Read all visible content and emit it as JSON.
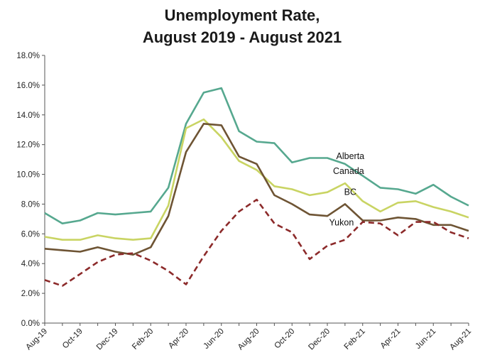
{
  "chart_data": {
    "type": "line",
    "title_lines": [
      "Unemployment Rate,",
      "August 2019 - August 2021"
    ],
    "xlabel": "",
    "ylabel": "",
    "x": [
      "Aug-19",
      "Sep-19",
      "Oct-19",
      "Nov-19",
      "Dec-19",
      "Jan-20",
      "Feb-20",
      "Mar-20",
      "Apr-20",
      "May-20",
      "Jun-20",
      "Jul-20",
      "Aug-20",
      "Sep-20",
      "Oct-20",
      "Nov-20",
      "Dec-20",
      "Jan-21",
      "Feb-21",
      "Mar-21",
      "Apr-21",
      "May-21",
      "Jun-21",
      "Jul-21",
      "Aug-21"
    ],
    "x_tick_labels": [
      "Aug-19",
      "",
      "Oct-19",
      "",
      "Dec-19",
      "",
      "Feb-20",
      "",
      "Apr-20",
      "",
      "Jun-20",
      "",
      "Aug-20",
      "",
      "Oct-20",
      "",
      "Dec-20",
      "",
      "Feb-21",
      "",
      "Apr-21",
      "",
      "Jun-21",
      "",
      "Aug-21"
    ],
    "y_tick_labels": [
      "0.0%",
      "2.0%",
      "4.0%",
      "6.0%",
      "8.0%",
      "10.0%",
      "12.0%",
      "14.0%",
      "16.0%",
      "18.0%"
    ],
    "ylim": [
      0,
      18
    ],
    "grid": false,
    "legend": "none",
    "series": [
      {
        "name": "Alberta",
        "color": "#56a88f",
        "dash": "solid",
        "values": [
          7.4,
          6.7,
          6.9,
          7.4,
          7.3,
          7.4,
          7.5,
          9.1,
          13.4,
          15.5,
          15.8,
          12.9,
          12.2,
          12.1,
          10.8,
          11.1,
          11.1,
          10.7,
          9.9,
          9.1,
          9.0,
          8.7,
          9.3,
          8.5,
          7.9
        ]
      },
      {
        "name": "Canada",
        "color": "#c9d463",
        "dash": "solid",
        "values": [
          5.8,
          5.6,
          5.6,
          5.9,
          5.7,
          5.6,
          5.7,
          7.9,
          13.1,
          13.7,
          12.5,
          10.9,
          10.3,
          9.2,
          9.0,
          8.6,
          8.8,
          9.4,
          8.2,
          7.5,
          8.1,
          8.2,
          7.8,
          7.5,
          7.1
        ]
      },
      {
        "name": "BC",
        "color": "#6e5434",
        "dash": "solid",
        "values": [
          5.0,
          4.9,
          4.8,
          5.1,
          4.8,
          4.6,
          5.1,
          7.2,
          11.5,
          13.4,
          13.3,
          11.2,
          10.7,
          8.6,
          8.0,
          7.3,
          7.2,
          8.0,
          6.9,
          6.9,
          7.1,
          7.0,
          6.6,
          6.6,
          6.2
        ]
      },
      {
        "name": "Yukon",
        "color": "#8c2a2a",
        "dash": "dashed",
        "values": [
          2.9,
          2.5,
          3.3,
          4.1,
          4.6,
          4.7,
          4.2,
          3.5,
          2.6,
          4.5,
          6.2,
          7.5,
          8.3,
          6.7,
          6.1,
          4.3,
          5.2,
          5.6,
          6.8,
          6.7,
          5.9,
          6.8,
          6.8,
          6.1,
          5.7
        ]
      }
    ]
  }
}
